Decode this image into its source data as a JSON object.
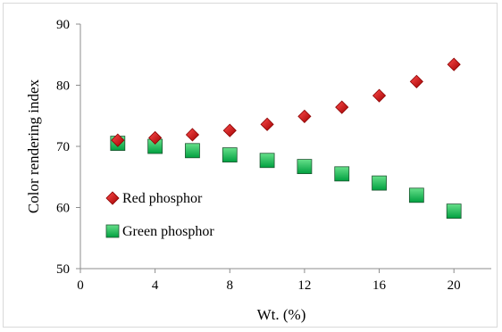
{
  "chart_data": {
    "type": "scatter",
    "title": "",
    "xlabel": "Wt. (%)",
    "ylabel": "Color rendering index",
    "xlim": [
      0,
      22
    ],
    "ylim": [
      50,
      90
    ],
    "xticks": [
      0,
      4,
      8,
      12,
      16,
      20
    ],
    "yticks": [
      50,
      60,
      70,
      80,
      90
    ],
    "grid": false,
    "legend_position": "left-middle",
    "series": [
      {
        "name": "Red phosphor",
        "marker": "diamond",
        "color": "#c00000",
        "x": [
          2,
          4,
          6,
          8,
          10,
          12,
          14,
          16,
          18,
          20
        ],
        "y": [
          71.0,
          71.4,
          71.9,
          72.6,
          73.6,
          74.9,
          76.4,
          78.3,
          80.6,
          83.4
        ]
      },
      {
        "name": "Green phosphor",
        "marker": "square",
        "color": "#00b050",
        "x": [
          2,
          4,
          6,
          8,
          10,
          12,
          14,
          16,
          18,
          20
        ],
        "y": [
          70.5,
          70.0,
          69.3,
          68.6,
          67.7,
          66.7,
          65.5,
          64.0,
          62.0,
          59.4
        ]
      }
    ]
  }
}
